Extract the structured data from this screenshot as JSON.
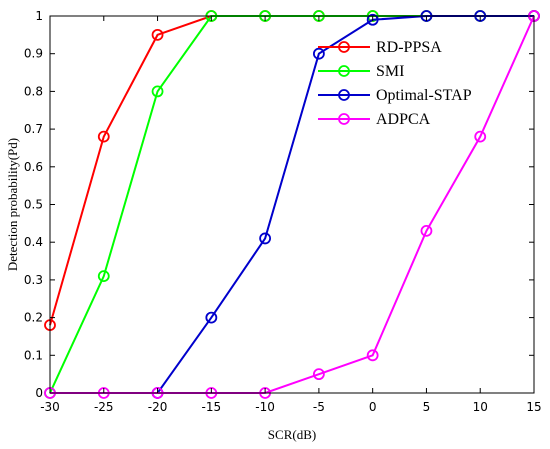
{
  "chart_data": {
    "type": "line",
    "title": "",
    "xlabel": "SCR(dB)",
    "ylabel": "Detection probability(Pd)",
    "xlim": [
      -30,
      15
    ],
    "ylim": [
      0,
      1
    ],
    "x_ticks": [
      "-30",
      "-25",
      "-20",
      "-15",
      "-10",
      "-5",
      "0",
      "5",
      "10",
      "15"
    ],
    "y_ticks": [
      "0",
      "0.1",
      "0.2",
      "0.3",
      "0.4",
      "0.5",
      "0.6",
      "0.7",
      "0.8",
      "0.9",
      "1"
    ],
    "grid": false,
    "legend_position": "top-right",
    "x": [
      -30,
      -25,
      -20,
      -15,
      -10,
      -5,
      0,
      5,
      10,
      15
    ],
    "series": [
      {
        "name": "RD-PPSA",
        "color": "#ff0000",
        "values": [
          0.18,
          0.68,
          0.95,
          1,
          1,
          1,
          1,
          1,
          1,
          1
        ]
      },
      {
        "name": "SMI",
        "color": "#00ff00",
        "values": [
          0,
          0.31,
          0.8,
          1,
          1,
          1,
          1,
          1,
          1,
          1
        ]
      },
      {
        "name": "Optimal-STAP",
        "color": "#0000cc",
        "values": [
          null,
          null,
          0,
          0.2,
          0.41,
          0.9,
          0.99,
          1,
          1,
          1
        ]
      },
      {
        "name": "ADPCA",
        "color": "#ff00ff",
        "values": [
          0,
          0,
          0,
          0,
          0,
          0.05,
          0.1,
          0.43,
          0.68,
          1
        ]
      }
    ]
  }
}
